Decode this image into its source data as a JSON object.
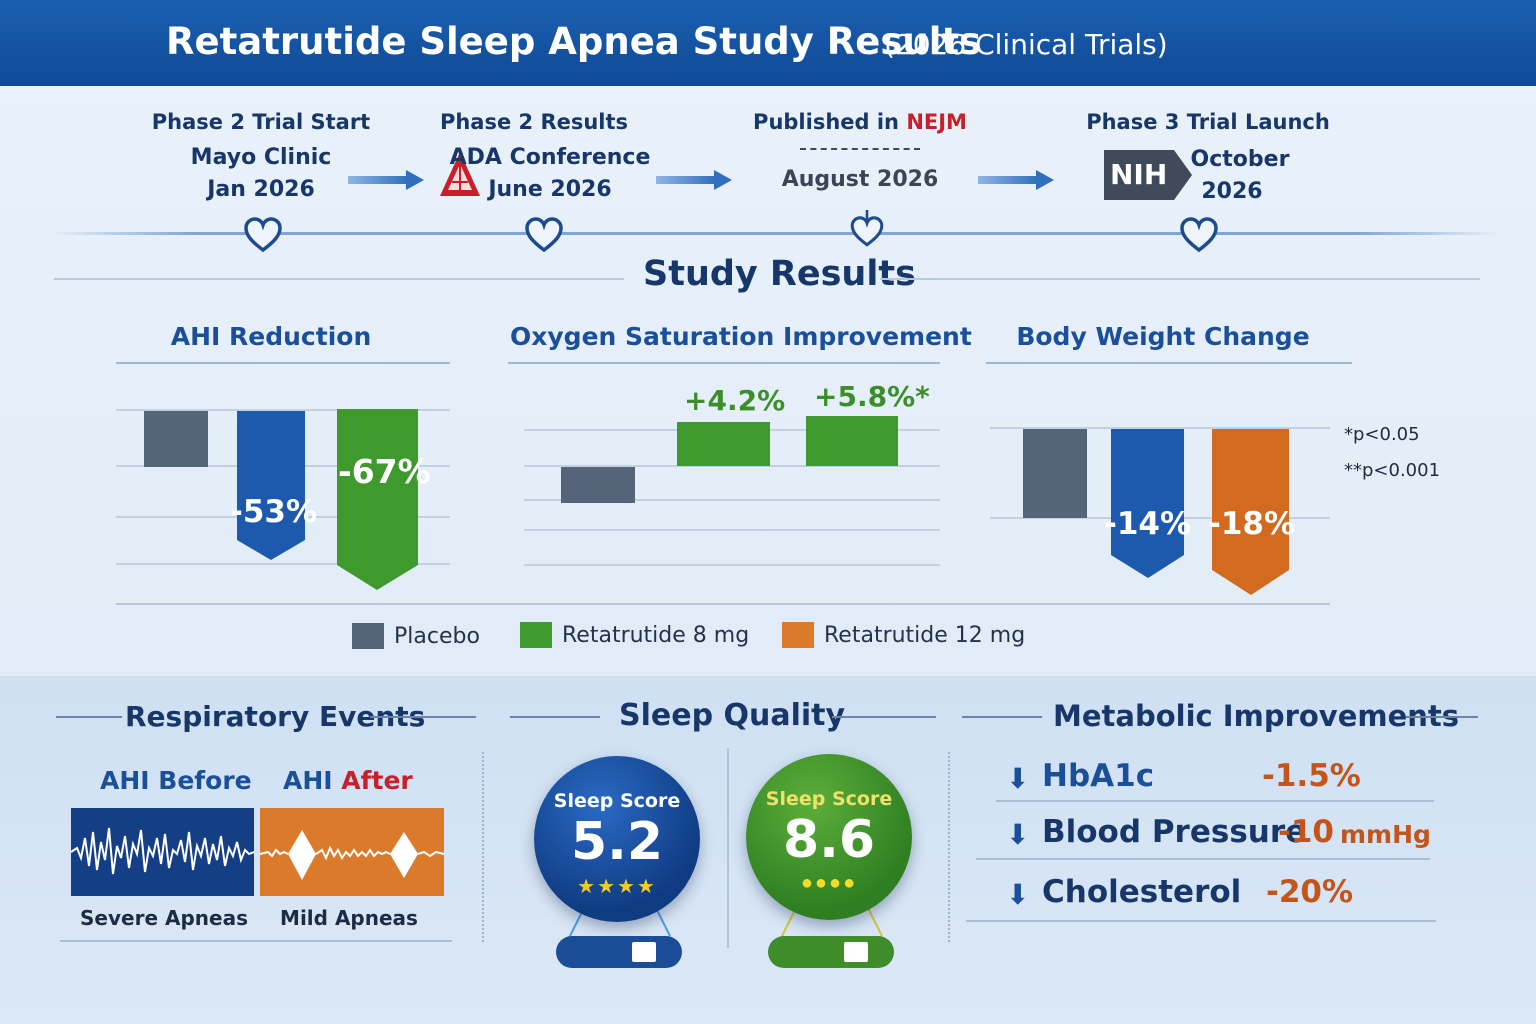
{
  "header": {
    "title": "Retatrutide Sleep Apnea Study Results",
    "subtitle": "(2026 Clinical Trials)"
  },
  "timeline": [
    {
      "label": "Phase 2 Trial Start",
      "line1": "Mayo Clinic",
      "line2": "Jan 2026"
    },
    {
      "label": "Phase 2 Results",
      "line1": "ADA Conference",
      "line2": "June 2026"
    },
    {
      "label_prefix": "Published in ",
      "label_accent": "NEJM",
      "line1": "August 2026"
    },
    {
      "label": "Phase 3 Trial Launch",
      "logo": "NIH",
      "line1": "October",
      "line2": "2026"
    }
  ],
  "study_results_title": "Study Results",
  "colors": {
    "placebo": "#56647a",
    "retatrutide_8mg": "#3f9a2e",
    "retatrutide_12mg": "#dc7a2c",
    "blue": "#1d59ad",
    "accent_red": "#c8202a"
  },
  "chart_data": [
    {
      "type": "bar",
      "title": "AHI Reduction",
      "bars": [
        {
          "group": "Placebo",
          "value": null,
          "label": ""
        },
        {
          "group": "Retatrutide 8 mg",
          "value": -53,
          "label": "-53%",
          "color": "blue"
        },
        {
          "group": "Retatrutide 8 mg",
          "value": -67,
          "label": "-67%",
          "color": "green"
        }
      ]
    },
    {
      "type": "bar",
      "title": "Oxygen Saturation Improvement",
      "bars": [
        {
          "group": "Placebo",
          "value": null,
          "label": ""
        },
        {
          "group": "Retatrutide 8 mg",
          "value": 4.2,
          "label": "+4.2%"
        },
        {
          "group": "Retatrutide 8 mg",
          "value": 5.8,
          "label": "+5.8%*"
        }
      ]
    },
    {
      "type": "bar",
      "title": "Body Weight Change",
      "bars": [
        {
          "group": "Placebo",
          "value": null,
          "label": ""
        },
        {
          "group": "Retatrutide 8 mg",
          "value": -14,
          "label": "-14%",
          "color": "blue"
        },
        {
          "group": "Retatrutide 12 mg",
          "value": -18,
          "label": "-18%"
        }
      ]
    }
  ],
  "significance": [
    "*p<0.05",
    "**p<0.001"
  ],
  "legend": [
    "Placebo",
    "Retatrutide 8 mg",
    "Retatrutide 12 mg"
  ],
  "respiratory": {
    "title": "Respiratory Events",
    "before_label": "AHI Before",
    "after_prefix": "AHI ",
    "after_accent": "After",
    "before_caption": "Severe Apneas",
    "after_caption": "Mild Apneas"
  },
  "sleep_quality": {
    "title": "Sleep Quality",
    "before": {
      "label": "Sleep Score",
      "value": "5.2",
      "stars": "★★★★"
    },
    "after": {
      "label": "Sleep Score",
      "value": "8.6",
      "stars": "●●●●"
    }
  },
  "metabolic": {
    "title": "Metabolic Improvements",
    "items": [
      {
        "name": "HbA1c",
        "value": "-1.5%"
      },
      {
        "name": "Blood Pressure",
        "value": "-10",
        "unit": "mmHg"
      },
      {
        "name": "Cholesterol",
        "value": "-20%"
      }
    ]
  }
}
